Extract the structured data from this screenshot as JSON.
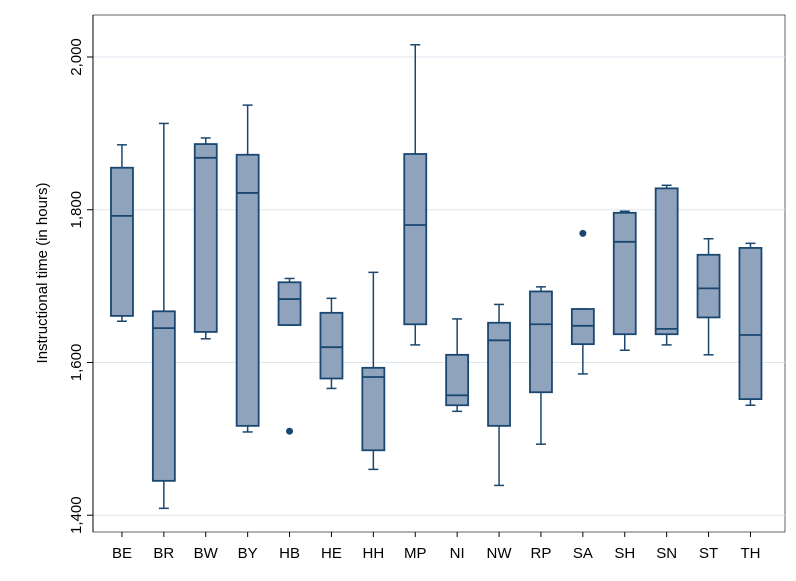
{
  "chart_data": {
    "type": "box",
    "y_label": "Instructional time (in hours)",
    "categories": [
      "BE",
      "BR",
      "BW",
      "BY",
      "HB",
      "HE",
      "HH",
      "MP",
      "NI",
      "NW",
      "RP",
      "SA",
      "SH",
      "SN",
      "ST",
      "TH"
    ],
    "min": [
      1654,
      1409,
      1631,
      1509,
      1649,
      1566,
      1460,
      1623,
      1536,
      1439,
      1493,
      1585,
      1616,
      1623,
      1610,
      1544
    ],
    "q1": [
      1661,
      1445,
      1640,
      1517,
      1649,
      1579,
      1485,
      1650,
      1544,
      1517,
      1561,
      1624,
      1637,
      1637,
      1659,
      1552
    ],
    "median": [
      1792,
      1645,
      1868,
      1822,
      1683,
      1620,
      1581,
      1780,
      1557,
      1629,
      1650,
      1648,
      1758,
      1644,
      1697,
      1636
    ],
    "q3": [
      1855,
      1667,
      1886,
      1872,
      1705,
      1665,
      1593,
      1873,
      1610,
      1652,
      1693,
      1670,
      1796,
      1828,
      1741,
      1750
    ],
    "max": [
      1885,
      1913,
      1894,
      1937,
      1710,
      1684,
      1718,
      2016,
      1657,
      1676,
      1699,
      1670,
      1798,
      1832,
      1762,
      1756
    ],
    "outliers": [
      [],
      [],
      [],
      [],
      [
        1510
      ],
      [],
      [],
      [],
      [],
      [],
      [],
      [
        1769
      ],
      [],
      [],
      [],
      []
    ],
    "color": "#8fa3bd",
    "line_color": "#1a476f",
    "ylim": [
      1378,
      2055
    ],
    "yticks": [
      {
        "value": 1400,
        "label": "1,400"
      },
      {
        "value": 1600,
        "label": "1,600"
      },
      {
        "value": 1800,
        "label": "1,800"
      },
      {
        "value": 2000,
        "label": "2,000"
      }
    ],
    "grid": true
  }
}
